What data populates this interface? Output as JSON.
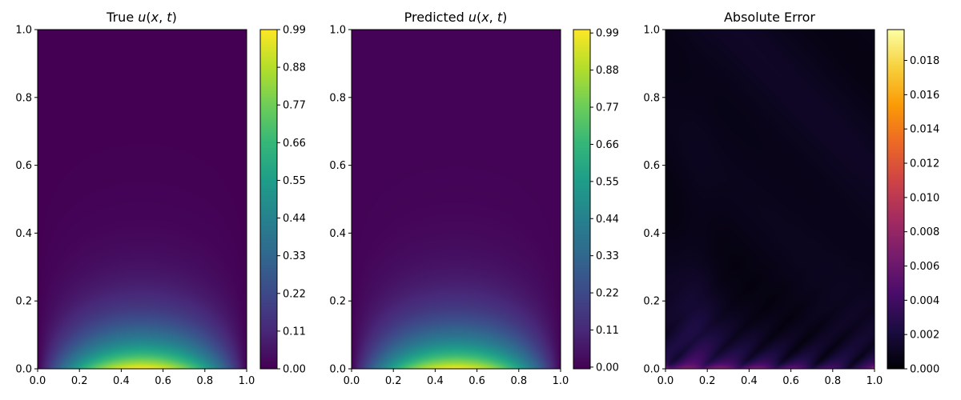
{
  "chart_data": [
    {
      "type": "heatmap",
      "title": "True u(x, t)",
      "title_parts": {
        "prefix": "True ",
        "math": "u",
        "open": "(",
        "x": "x",
        "comma": ", ",
        "t": "t",
        "close": ")"
      },
      "field": "true",
      "colormap": "viridis",
      "xlim": [
        0,
        1
      ],
      "ylim": [
        0,
        1
      ],
      "xticks": [
        "0.0",
        "0.2",
        "0.4",
        "0.6",
        "0.8",
        "1.0"
      ],
      "yticks": [
        "0.0",
        "0.2",
        "0.4",
        "0.6",
        "0.8",
        "1.0"
      ],
      "colorbar": {
        "range": [
          0,
          0.99
        ],
        "ticks": [
          "0.00",
          "0.11",
          "0.22",
          "0.33",
          "0.44",
          "0.55",
          "0.66",
          "0.77",
          "0.88",
          "0.99"
        ]
      }
    },
    {
      "type": "heatmap",
      "title": "Predicted u(x, t)",
      "title_parts": {
        "prefix": "Predicted ",
        "math": "u",
        "open": "(",
        "x": "x",
        "comma": ", ",
        "t": "t",
        "close": ")"
      },
      "field": "predicted",
      "colormap": "viridis",
      "xlim": [
        0,
        1
      ],
      "ylim": [
        0,
        1
      ],
      "xticks": [
        "0.0",
        "0.2",
        "0.4",
        "0.6",
        "0.8",
        "1.0"
      ],
      "yticks": [
        "0.0",
        "0.2",
        "0.4",
        "0.6",
        "0.8",
        "1.0"
      ],
      "colorbar": {
        "range": [
          -0.005,
          1.0
        ],
        "ticks": [
          "0.00",
          "0.11",
          "0.22",
          "0.33",
          "0.44",
          "0.55",
          "0.66",
          "0.77",
          "0.88",
          "0.99"
        ]
      }
    },
    {
      "type": "heatmap",
      "title": "Absolute Error",
      "field": "error",
      "colormap": "inferno",
      "xlim": [
        0,
        1
      ],
      "ylim": [
        0,
        1
      ],
      "xticks": [
        "0.0",
        "0.2",
        "0.4",
        "0.6",
        "0.8",
        "1.0"
      ],
      "yticks": [
        "0.0",
        "0.2",
        "0.4",
        "0.6",
        "0.8",
        "1.0"
      ],
      "colorbar": {
        "range": [
          0,
          0.0198
        ],
        "ticks": [
          "0.000",
          "0.002",
          "0.004",
          "0.006",
          "0.008",
          "0.010",
          "0.012",
          "0.014",
          "0.016",
          "0.018"
        ]
      }
    }
  ]
}
